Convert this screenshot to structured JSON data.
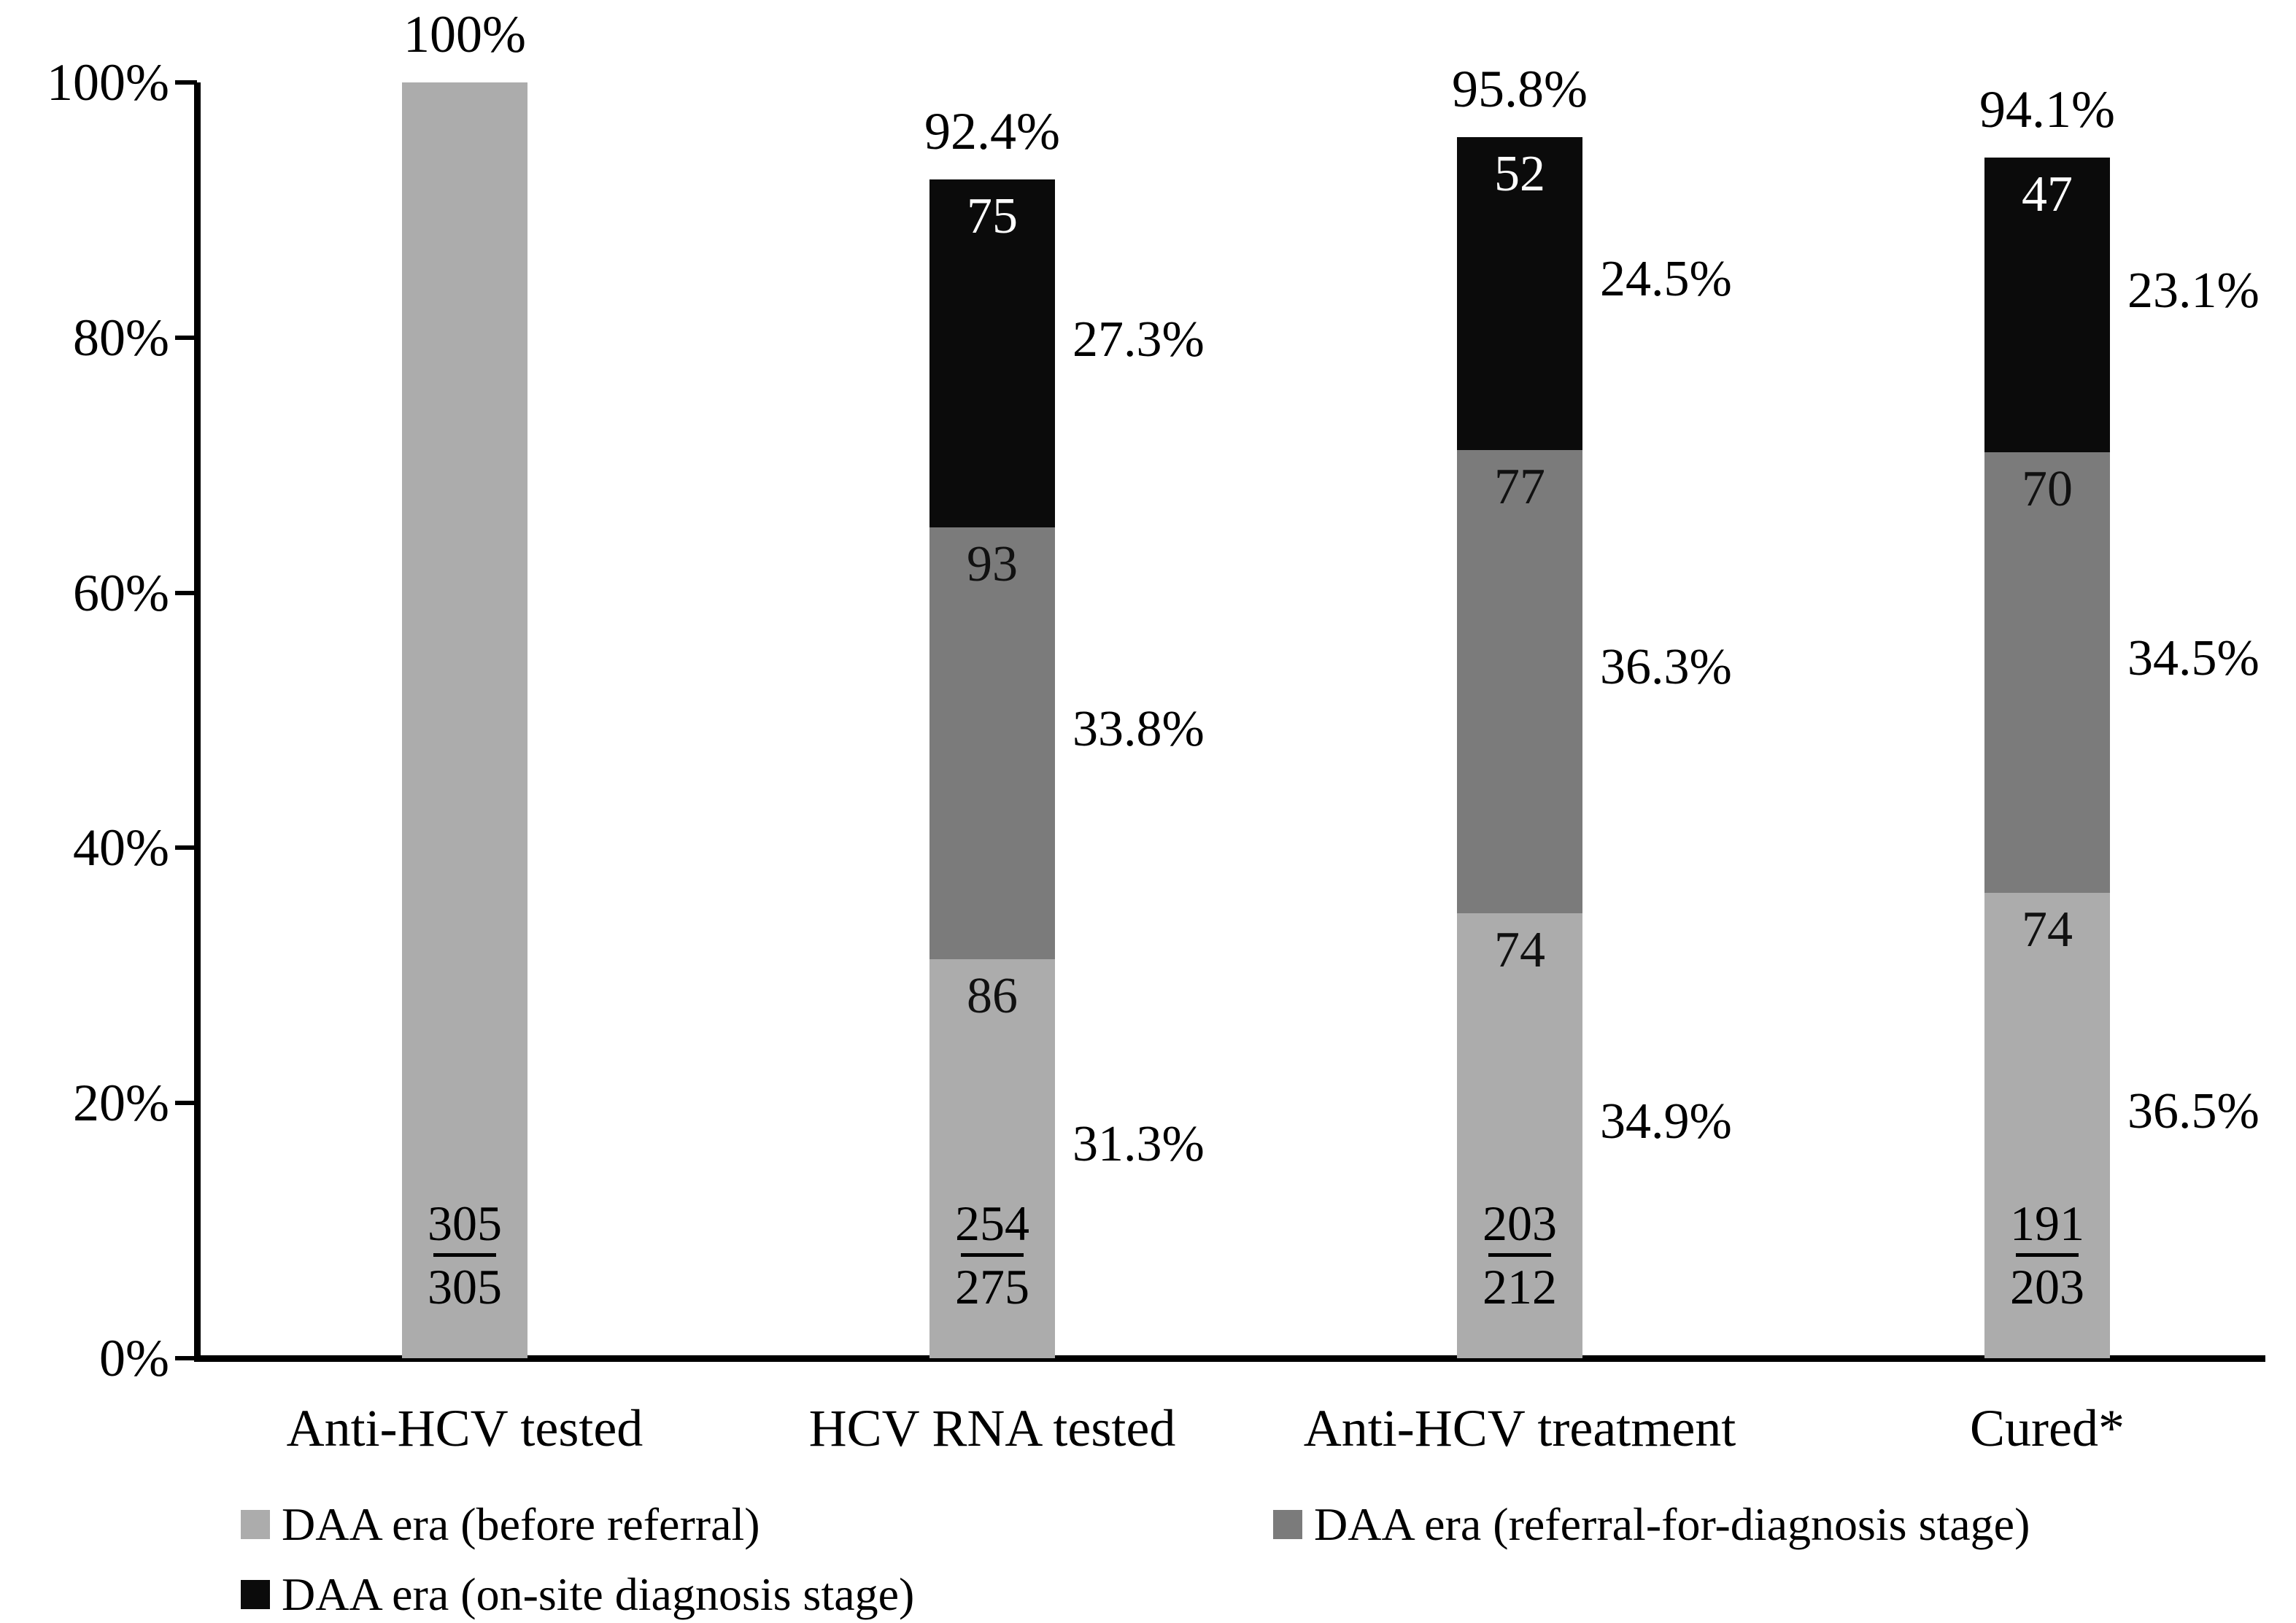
{
  "figure": {
    "background": "#ffffff"
  },
  "chart_data": {
    "type": "bar",
    "stacked": true,
    "title": "",
    "xlabel": "",
    "ylabel": "",
    "ylim": [
      0,
      100
    ],
    "grid": false,
    "legend_position": "bottom",
    "y_tick_labels": [
      "0%",
      "20%",
      "40%",
      "60%",
      "80%",
      "100%"
    ],
    "categories": [
      "Anti-HCV tested",
      "HCV RNA tested",
      "Anti-HCV treatment",
      "Cured*"
    ],
    "series": [
      {
        "name": "DAA era (before referral)",
        "color": "#ACACAC",
        "values_pct": [
          100,
          31.3,
          34.9,
          36.5
        ],
        "counts": [
          null,
          86,
          74,
          74
        ],
        "side_labels": [
          null,
          "31.3%",
          "34.9%",
          "36.5%"
        ]
      },
      {
        "name": "DAA era (referral-for-diagnosis stage)",
        "color": "#7B7B7B",
        "values_pct": [
          0,
          33.8,
          36.3,
          34.5
        ],
        "counts": [
          null,
          93,
          77,
          70
        ],
        "side_labels": [
          null,
          "33.8%",
          "36.3%",
          "34.5%"
        ]
      },
      {
        "name": "DAA era (on-site diagnosis stage)",
        "color": "#0B0B0B",
        "values_pct": [
          0,
          27.3,
          24.5,
          23.1
        ],
        "counts": [
          null,
          75,
          52,
          47
        ],
        "side_labels": [
          null,
          "27.3%",
          "24.5%",
          "23.1%"
        ]
      }
    ],
    "bar_total_labels": [
      "100%",
      "92.4%",
      "95.8%",
      "94.1%"
    ],
    "fractions": [
      {
        "numerator": "305",
        "denominator": "305"
      },
      {
        "numerator": "254",
        "denominator": "275"
      },
      {
        "numerator": "203",
        "denominator": "212"
      },
      {
        "numerator": "191",
        "denominator": "203"
      }
    ]
  },
  "legend": {
    "items": [
      {
        "label": "DAA era (before referral)",
        "color": "#ACACAC"
      },
      {
        "label": "DAA era (referral-for-diagnosis stage)",
        "color": "#7B7B7B"
      },
      {
        "label": "DAA era (on-site diagnosis stage)",
        "color": "#0B0B0B"
      }
    ]
  }
}
